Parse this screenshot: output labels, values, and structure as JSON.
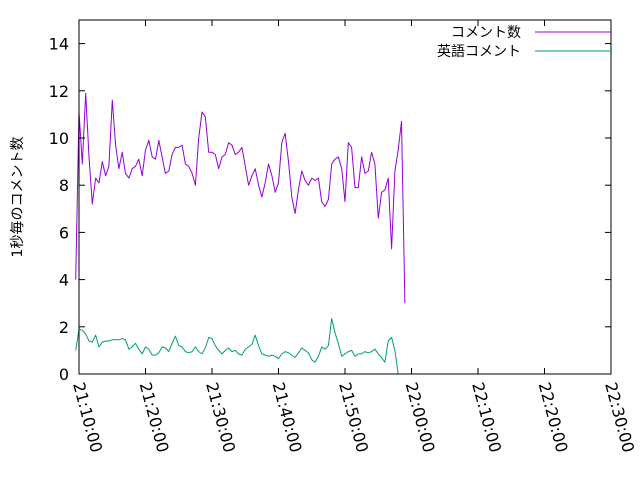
{
  "chart_data": {
    "type": "line",
    "title": "",
    "xlabel": "",
    "ylabel": "1秒毎のコメント数",
    "x_start": "21:09:30",
    "x_step_seconds": 30,
    "xlim": [
      "21:10:00",
      "22:30:00"
    ],
    "ylim": [
      0,
      15
    ],
    "x_ticks": [
      "21:10:00",
      "21:20:00",
      "21:30:00",
      "21:40:00",
      "21:50:00",
      "22:00:00",
      "22:10:00",
      "22:20:00",
      "22:30:00"
    ],
    "y_ticks": [
      "0",
      "2",
      "4",
      "6",
      "8",
      "10",
      "12",
      "14"
    ],
    "grid": false,
    "legend_position": "top-right",
    "series": [
      {
        "name": "コメント数",
        "color": "#9400d3",
        "values": [
          4.0,
          11.1,
          8.9,
          11.9,
          9.2,
          7.2,
          8.3,
          8.1,
          9.0,
          8.4,
          8.8,
          11.6,
          9.7,
          8.7,
          9.4,
          8.5,
          8.3,
          8.7,
          8.8,
          9.1,
          8.4,
          9.5,
          9.9,
          9.2,
          9.1,
          9.9,
          9.2,
          8.5,
          8.6,
          9.3,
          9.6,
          9.6,
          9.7,
          8.9,
          8.8,
          8.5,
          8.0,
          10.0,
          11.1,
          10.9,
          9.4,
          9.4,
          9.3,
          8.7,
          9.2,
          9.3,
          9.8,
          9.7,
          9.3,
          9.4,
          9.6,
          8.8,
          8.0,
          8.4,
          8.7,
          8.0,
          7.5,
          8.1,
          8.9,
          8.4,
          7.7,
          8.1,
          9.8,
          10.2,
          9.0,
          7.5,
          6.8,
          7.8,
          8.6,
          8.2,
          8.0,
          8.3,
          8.2,
          8.3,
          7.3,
          7.1,
          7.4,
          8.9,
          9.1,
          9.2,
          8.7,
          7.3,
          9.8,
          9.6,
          7.9,
          7.9,
          9.2,
          8.5,
          8.6,
          9.4,
          8.9,
          6.6,
          7.7,
          7.8,
          8.3,
          5.3,
          8.6,
          9.5,
          10.7,
          3.0
        ]
      },
      {
        "name": "英語コメント",
        "color": "#009e73",
        "values": [
          1.0,
          1.9,
          1.85,
          1.7,
          1.4,
          1.35,
          1.65,
          1.15,
          1.35,
          1.4,
          1.4,
          1.45,
          1.45,
          1.45,
          1.5,
          1.45,
          1.05,
          1.15,
          1.3,
          1.05,
          0.85,
          1.15,
          1.05,
          0.8,
          0.8,
          0.9,
          1.15,
          1.1,
          0.95,
          1.3,
          1.6,
          1.2,
          1.15,
          0.95,
          0.9,
          0.95,
          1.15,
          0.95,
          0.85,
          1.1,
          1.55,
          1.5,
          1.2,
          1.0,
          0.85,
          1.0,
          1.1,
          0.95,
          1.0,
          0.85,
          0.8,
          1.05,
          1.15,
          1.25,
          1.65,
          1.2,
          0.85,
          0.8,
          0.75,
          0.8,
          0.75,
          0.65,
          0.85,
          0.95,
          0.9,
          0.8,
          0.7,
          0.9,
          1.1,
          1.0,
          0.9,
          0.6,
          0.5,
          0.75,
          1.15,
          1.05,
          1.2,
          2.35,
          1.75,
          1.3,
          0.75,
          0.85,
          0.95,
          1.0,
          0.75,
          0.85,
          0.85,
          0.95,
          0.9,
          0.95,
          1.05,
          0.85,
          0.7,
          0.5,
          1.4,
          1.55,
          1.0,
          0.0
        ]
      }
    ]
  }
}
